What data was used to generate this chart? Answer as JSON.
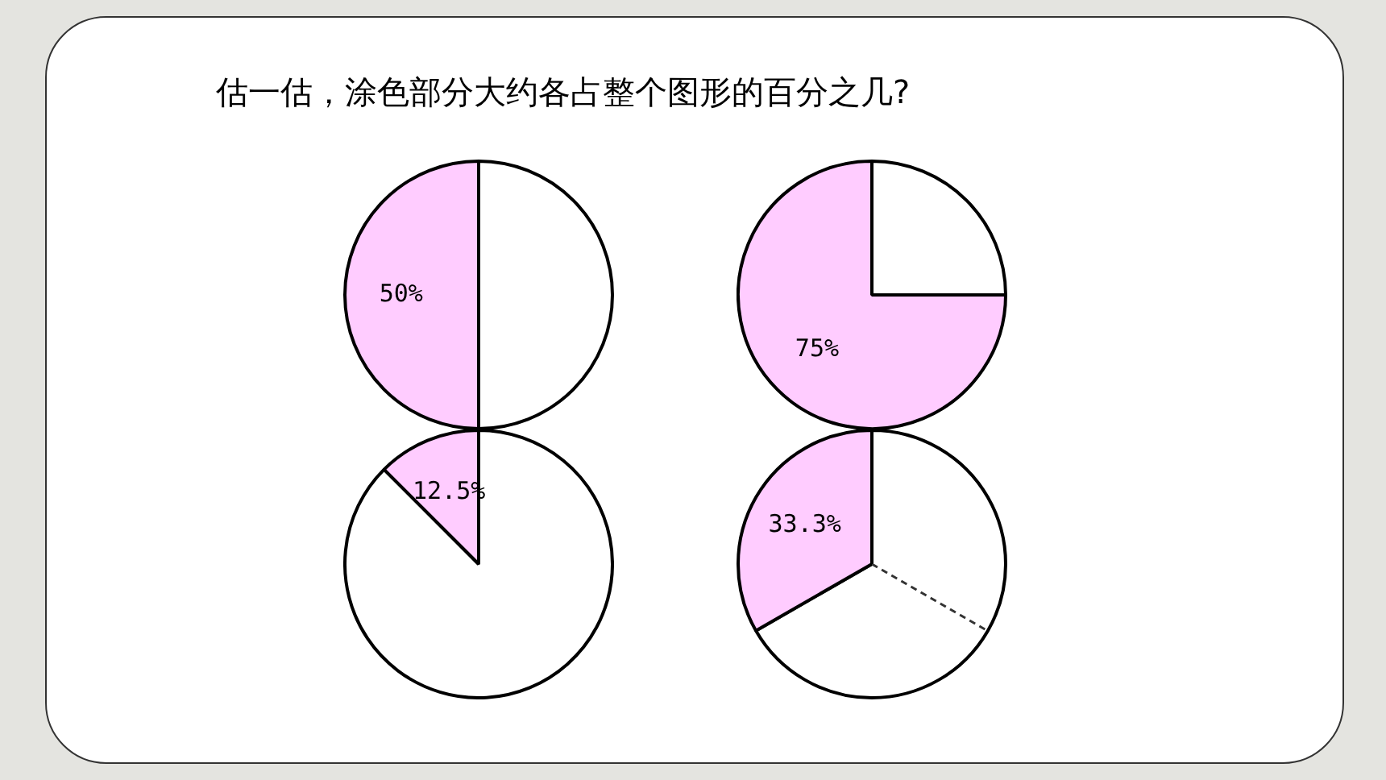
{
  "chart_data": [
    {
      "type": "pie",
      "title": "估一估，涂色部分大约各占整个图形的百分之几?",
      "categories": [
        null,
        null
      ],
      "values": [
        50,
        50
      ],
      "colors": [
        "#ffffff",
        "#ffccff"
      ],
      "value_labels": [
        null,
        "50%"
      ],
      "legend": false
    },
    {
      "type": "pie",
      "categories": [
        null,
        null
      ],
      "values": [
        25,
        75
      ],
      "colors": [
        "#ffffff",
        "#ffccff"
      ],
      "value_labels": [
        null,
        "75%"
      ],
      "legend": false
    },
    {
      "type": "pie",
      "categories": [
        null,
        null
      ],
      "values": [
        87.5,
        12.5
      ],
      "colors": [
        "#ffffff",
        "#ffccff"
      ],
      "value_labels": [
        null,
        "12.5%"
      ],
      "legend": false
    },
    {
      "type": "pie",
      "categories": [
        null,
        null
      ],
      "values": [
        66.7,
        33.3
      ],
      "colors": [
        "#ffffff",
        "#ffccff"
      ],
      "value_labels": [
        null,
        "33.3%"
      ],
      "legend": false
    }
  ]
}
